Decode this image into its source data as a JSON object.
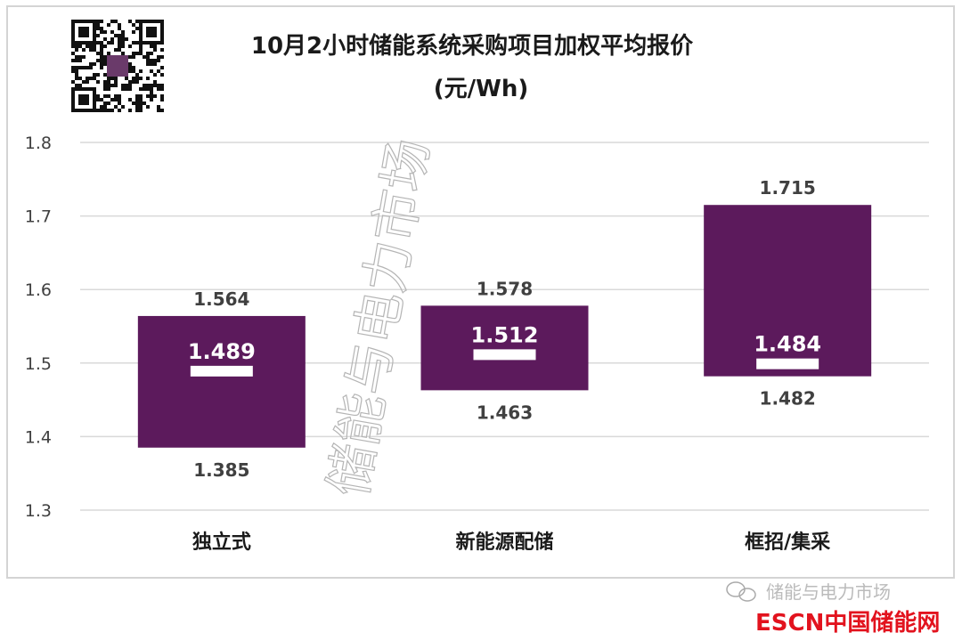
{
  "chart_data": {
    "type": "range-bar",
    "title": "10月2小时储能系统采购项目加权平均报价",
    "subtitle": "(元/Wh)",
    "categories": [
      "独立式",
      "新能源配储",
      "框招/集采"
    ],
    "series": [
      {
        "name": "",
        "role": "min",
        "values": [
          1.385,
          1.463,
          1.482
        ]
      },
      {
        "name": "",
        "role": "max",
        "values": [
          1.564,
          1.578,
          1.715
        ]
      },
      {
        "name": "",
        "role": "weighted-average",
        "values": [
          1.489,
          1.512,
          1.484
        ]
      }
    ],
    "ylim": [
      1.3,
      1.8
    ],
    "yticks": [
      "1.3",
      "1.4",
      "1.5",
      "1.6",
      "1.7",
      "1.8"
    ],
    "grid": true,
    "legend": "none",
    "colors": {
      "bar": "#5c1a5c",
      "marker": "#ffffff",
      "grid": "#d9d9d9",
      "text": "#404040"
    }
  },
  "watermark": {
    "center": "储能与电力市场",
    "footer": "储能与电力市场",
    "logo": "ESCN中国储能网"
  }
}
